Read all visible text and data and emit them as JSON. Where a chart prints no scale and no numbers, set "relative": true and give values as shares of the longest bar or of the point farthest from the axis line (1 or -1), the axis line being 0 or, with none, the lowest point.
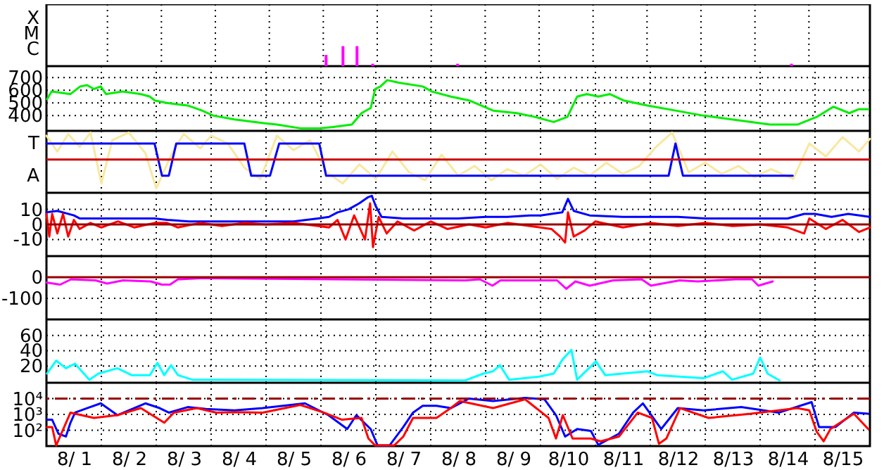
{
  "chart_data": [
    {
      "type": "bar",
      "relative": true,
      "x": [
        "--08-06T01:15",
        "--08-06T08:45",
        "--08-06T15:00",
        "--08-06T22:00",
        "--08-08T11:45",
        "--08-14T16:15"
      ],
      "values": [
        0.56,
        1,
        1,
        0.12,
        0.12,
        0.12
      ],
      "color": "#ff00ff",
      "xlim": [
        "--08-01",
        "--08-16"
      ],
      "xticks": [
        {
          "value": "--08-02",
          "label": null
        },
        {
          "value": "--08-03",
          "label": null
        },
        {
          "value": "--08-04",
          "label": null
        },
        {
          "value": "--08-05",
          "label": null
        },
        {
          "value": "--08-06",
          "label": null
        },
        {
          "value": "--08-07",
          "label": null
        },
        {
          "value": "--08-08",
          "label": null
        },
        {
          "value": "--08-09",
          "label": null
        },
        {
          "value": "--08-10",
          "label": null
        },
        {
          "value": "--08-11",
          "label": null
        },
        {
          "value": "--08-12",
          "label": null
        },
        {
          "value": "--08-13",
          "label": null
        },
        {
          "value": "--08-14",
          "label": null
        },
        {
          "value": "--08-15",
          "label": null
        }
      ],
      "annotations": [
        "X",
        "M",
        "C"
      ],
      "grid": true,
      "tick_labels": false
    },
    {
      "type": "line",
      "series": [
        {
          "color": "#00ee00",
          "x": [
            "--08-01T00:15",
            "--08-01T02:15",
            "--08-01T10:30",
            "--08-01T14:45",
            "--08-01T17:45",
            "--08-01T20:45",
            "--08-01T23:45",
            "--08-02T02:00",
            "--08-02T09:15",
            "--08-02T17:15",
            "--08-02T21:15",
            "--08-02T23:15",
            "--08-03T04:30",
            "--08-03T13:45",
            "--08-03T20:00",
            "--08-04T01:00",
            "--08-04T10:15",
            "--08-04T23:30",
            "--08-05T04:45",
            "--08-05T15:00",
            "--08-05T23:15",
            "--08-06T05:15",
            "--08-06T13:30",
            "--08-06T17:45",
            "--08-06T21:45",
            "--08-06T23:45",
            "--08-07T02:00",
            "--08-07T05:00",
            "--08-07T10:00",
            "--08-07T20:30",
            "--08-08T00:30",
            "--08-08T08:45",
            "--08-08T16:45",
            "--08-09T03:15",
            "--08-09T13:30",
            "--08-09T21:30",
            "--08-10T05:45",
            "--08-10T11:45",
            "--08-10T16:00",
            "--08-10T20:15",
            "--08-11T01:15",
            "--08-11T06:15",
            "--08-11T12:15",
            "--08-11T22:45",
            "--08-12T11:00",
            "--08-12T23:15",
            "--08-13T15:45",
            "--08-14T04:15",
            "--08-14T16:30",
            "--08-15T00:45",
            "--08-15T08:00",
            "--08-15T15:00",
            "--08-15T19:00",
            "--08-15T23:15"
          ],
          "values": [
            530,
            590,
            570,
            630,
            640,
            610,
            630,
            570,
            590,
            570,
            550,
            520,
            500,
            480,
            440,
            400,
            370,
            340,
            330,
            300,
            300,
            310,
            330,
            420,
            460,
            610,
            630,
            680,
            660,
            630,
            590,
            550,
            520,
            440,
            420,
            390,
            350,
            390,
            550,
            570,
            550,
            570,
            520,
            480,
            440,
            400,
            360,
            330,
            330,
            390,
            470,
            420,
            450,
            450
          ]
        }
      ],
      "xlim": [
        "--08-01",
        "--08-16"
      ],
      "xticks": [
        {
          "value": "--08-02",
          "label": null
        },
        {
          "value": "--08-03",
          "label": null
        },
        {
          "value": "--08-04",
          "label": null
        },
        {
          "value": "--08-05",
          "label": null
        },
        {
          "value": "--08-06",
          "label": null
        },
        {
          "value": "--08-07",
          "label": null
        },
        {
          "value": "--08-08",
          "label": null
        },
        {
          "value": "--08-09",
          "label": null
        },
        {
          "value": "--08-10",
          "label": null
        },
        {
          "value": "--08-11",
          "label": null
        },
        {
          "value": "--08-12",
          "label": null
        },
        {
          "value": "--08-13",
          "label": null
        },
        {
          "value": "--08-14",
          "label": null
        },
        {
          "value": "--08-15",
          "label": null
        }
      ],
      "ylim": [
        280,
        790
      ],
      "yticks": [
        400,
        500,
        600,
        700
      ],
      "grid": true,
      "tick_labels": "y"
    },
    {
      "type": "line",
      "relative": true,
      "series": [
        {
          "color": "#f8e8a0",
          "x": [
            "--08-01T00:00",
            "--08-01T04:45",
            "--08-01T09:30",
            "--08-01T14:30",
            "--08-01T19:15",
            "--08-02T00:00",
            "--08-02T04:45",
            "--08-02T12:00",
            "--08-02T19:15",
            "--08-03T00:00",
            "--08-03T07:15",
            "--08-03T12:00",
            "--08-03T19:15",
            "--08-04T00:00",
            "--08-04T07:15",
            "--08-04T14:30",
            "--08-04T21:30",
            "--08-05T04:45",
            "--08-05T12:00",
            "--08-05T19:15",
            "--08-06T02:30",
            "--08-06T09:30",
            "--08-06T16:45",
            "--08-07T00:00",
            "--08-07T07:15",
            "--08-07T14:30",
            "--08-07T21:30",
            "--08-08T04:45",
            "--08-08T12:00",
            "--08-08T19:15",
            "--08-09T02:30",
            "--08-09T09:30",
            "--08-09T16:45",
            "--08-10T00:00",
            "--08-10T07:15",
            "--08-10T14:30",
            "--08-10T21:30",
            "--08-11T04:45",
            "--08-11T12:00",
            "--08-11T19:15",
            "--08-12T02:30",
            "--08-12T09:30",
            "--08-12T16:45",
            "--08-13T00:00",
            "--08-13T07:15",
            "--08-13T14:30",
            "--08-13T21:30",
            "--08-14T04:45",
            "--08-14T14:30",
            "--08-14T21:30",
            "--08-15T04:45",
            "--08-15T12:00",
            "--08-15T19:15",
            "--08-16T00:00"
          ],
          "values": [
            0.83,
            0.28,
            0.89,
            0.44,
            0.94,
            -0.83,
            0.67,
            0.94,
            0.22,
            -1,
            0.28,
            0.89,
            0.39,
            0.83,
            0.56,
            -0.28,
            -0.67,
            0.83,
            0.33,
            0.67,
            -0.44,
            -0.83,
            -0.17,
            -0.67,
            0.28,
            -0.44,
            -0.72,
            0.17,
            -0.56,
            -0.22,
            -0.72,
            -0.33,
            -0.56,
            -0.17,
            -0.67,
            -0.28,
            -0.56,
            -0.11,
            -0.5,
            -0.22,
            0.44,
            0.94,
            -0.44,
            -0.11,
            -0.5,
            -0.22,
            -0.61,
            -0.33,
            -0.67,
            0.56,
            0.11,
            0.78,
            0.28,
            0.72
          ]
        },
        {
          "color": "#0000ff",
          "x": [
            "--08-01T00:00",
            "--08-02T23:15",
            "--08-03T02:30",
            "--08-03T05:30",
            "--08-03T08:45",
            "--08-04T14:30",
            "--08-04T17:30",
            "--08-05T01:45",
            "--08-05T05:45",
            "--08-05T23:15",
            "--08-06T02:15",
            "--08-12T08:00",
            "--08-12T11:00",
            "--08-12T14:15",
            "--08-14T14:15"
          ],
          "values": [
            0.56,
            0.56,
            -0.56,
            -0.56,
            0.56,
            0.56,
            -0.56,
            -0.56,
            0.56,
            0.56,
            -0.56,
            -0.56,
            0.56,
            -0.56,
            -0.56
          ]
        }
      ],
      "xlim": [
        "--08-01",
        "--08-16"
      ],
      "xticks": [
        {
          "value": "--08-02",
          "label": null
        },
        {
          "value": "--08-03",
          "label": null
        },
        {
          "value": "--08-04",
          "label": null
        },
        {
          "value": "--08-05",
          "label": null
        },
        {
          "value": "--08-06",
          "label": null
        },
        {
          "value": "--08-07",
          "label": null
        },
        {
          "value": "--08-08",
          "label": null
        },
        {
          "value": "--08-09",
          "label": null
        },
        {
          "value": "--08-10",
          "label": null
        },
        {
          "value": "--08-11",
          "label": null
        },
        {
          "value": "--08-12",
          "label": null
        },
        {
          "value": "--08-13",
          "label": null
        },
        {
          "value": "--08-14",
          "label": null
        },
        {
          "value": "--08-15",
          "label": null
        }
      ],
      "annotations": [
        "T",
        "A"
      ],
      "grid": true,
      "tick_labels": false,
      "ref_lines": [
        {
          "axis": "y",
          "value": 0,
          "color": "#cc0000"
        }
      ]
    },
    {
      "type": "line",
      "series": [
        {
          "color": "#0000ff",
          "x": [
            "--08-01T00:00",
            "--08-01T04:45",
            "--08-01T12:00",
            "--08-01T14:30",
            "--08-02T00:00",
            "--08-02T12:00",
            "--08-02T23:15",
            "--08-03T04:45",
            "--08-03T14:30",
            "--08-04T00:00",
            "--08-04T12:00",
            "--08-05T00:00",
            "--08-05T12:00",
            "--08-05T22:45",
            "--08-06T03:30",
            "--08-06T07:15",
            "--08-06T12:00",
            "--08-06T16:45",
            "--08-06T20:30",
            "--08-06T22:15",
            "--08-07T00:00",
            "--08-07T02:30",
            "--08-07T12:00",
            "--08-08T00:00",
            "--08-08T12:00",
            "--08-09T00:00",
            "--08-09T09:30",
            "--08-09T19:15",
            "--08-10T00:00",
            "--08-10T09:30",
            "--08-10T12:00",
            "--08-10T14:30",
            "--08-10T21:30",
            "--08-11T12:00",
            "--08-12T00:00",
            "--08-12T12:00",
            "--08-13T00:00",
            "--08-13T12:00",
            "--08-14T00:00",
            "--08-14T12:00",
            "--08-14T19:15",
            "--08-15T00:00",
            "--08-15T07:15",
            "--08-15T14:30",
            "--08-16T00:00"
          ],
          "values": [
            8,
            9,
            6,
            4,
            4,
            4,
            4,
            3,
            2,
            2,
            2,
            2,
            2,
            4,
            5,
            8,
            10,
            14,
            18,
            19,
            12,
            5,
            4,
            4,
            4,
            5,
            5,
            6,
            6,
            8,
            17,
            9,
            6,
            5,
            5,
            5,
            4,
            4,
            4,
            4,
            7,
            7,
            5,
            7,
            5
          ]
        },
        {
          "color": "#ff0000",
          "x": [
            "--08-01T00:00",
            "--08-01T01:15",
            "--08-01T02:30",
            "--08-01T04:45",
            "--08-01T07:15",
            "--08-01T09:30",
            "--08-01T12:00",
            "--08-01T14:30",
            "--08-01T19:15",
            "--08-02T00:00",
            "--08-02T07:15",
            "--08-02T14:30",
            "--08-02T23:15",
            "--08-03T04:45",
            "--08-03T09:30",
            "--08-03T19:15",
            "--08-04T04:45",
            "--08-04T14:30",
            "--08-05T00:00",
            "--08-05T12:00",
            "--08-05T22:45",
            "--08-06T03:30",
            "--08-06T07:15",
            "--08-06T10:45",
            "--08-06T14:30",
            "--08-06T19:15",
            "--08-06T21:30",
            "--08-06T22:45",
            "--08-07T01:15",
            "--08-07T04:45",
            "--08-07T09:30",
            "--08-07T16:45",
            "--08-08T00:00",
            "--08-08T07:15",
            "--08-08T16:45",
            "--08-09T00:00",
            "--08-09T09:30",
            "--08-09T19:15",
            "--08-10T04:45",
            "--08-10T08:30",
            "--08-10T10:45",
            "--08-10T12:00",
            "--08-10T14:30",
            "--08-10T19:15",
            "--08-11T00:00",
            "--08-11T12:00",
            "--08-12T00:00",
            "--08-12T12:00",
            "--08-13T00:00",
            "--08-13T12:00",
            "--08-14T00:00",
            "--08-14T12:00",
            "--08-14T19:15",
            "--08-14T21:30",
            "--08-15T04:45",
            "--08-15T12:00",
            "--08-15T19:15",
            "--08-16T00:00"
          ],
          "values": [
            7,
            -8,
            7,
            -6,
            7,
            -8,
            3,
            -3,
            1,
            -2,
            2,
            -2,
            1,
            1,
            -2,
            1,
            -1,
            1,
            0,
            1,
            -1,
            -2,
            3,
            -10,
            6,
            -10,
            14,
            -15,
            5,
            -6,
            2,
            -4,
            2,
            -3,
            0,
            -2,
            1,
            -1,
            -3,
            -8,
            -12,
            8,
            -8,
            -4,
            2,
            -2,
            1,
            -1,
            1,
            -1,
            0,
            -2,
            -6,
            4,
            -3,
            3,
            -5,
            -2
          ]
        }
      ],
      "xlim": [
        "--08-01",
        "--08-16"
      ],
      "xticks": [
        {
          "value": "--08-02",
          "label": null
        },
        {
          "value": "--08-03",
          "label": null
        },
        {
          "value": "--08-04",
          "label": null
        },
        {
          "value": "--08-05",
          "label": null
        },
        {
          "value": "--08-06",
          "label": null
        },
        {
          "value": "--08-07",
          "label": null
        },
        {
          "value": "--08-08",
          "label": null
        },
        {
          "value": "--08-09",
          "label": null
        },
        {
          "value": "--08-10",
          "label": null
        },
        {
          "value": "--08-11",
          "label": null
        },
        {
          "value": "--08-12",
          "label": null
        },
        {
          "value": "--08-13",
          "label": null
        },
        {
          "value": "--08-14",
          "label": null
        },
        {
          "value": "--08-15",
          "label": null
        }
      ],
      "ylim": [
        -21,
        21
      ],
      "yticks": [
        -10,
        0,
        10
      ],
      "grid": true,
      "tick_labels": "y",
      "ref_lines": [
        {
          "axis": "y",
          "value": 0,
          "color": "#990000"
        }
      ]
    },
    {
      "type": "line",
      "series": [
        {
          "color": "#ff00ff",
          "x": [
            "--08-01T00:00",
            "--08-01T06:00",
            "--08-01T10:45",
            "--08-01T21:30",
            "--08-02T02:30",
            "--08-02T09:30",
            "--08-02T21:30",
            "--08-03T02:30",
            "--08-03T06:00",
            "--08-03T09:30",
            "--08-03T19:15",
            "--08-03T22:00",
            "--08-08T15:00",
            "--08-08T21:30",
            "--08-09T03:00",
            "--08-09T06:30",
            "--08-10T07:15",
            "--08-10T11:15",
            "--08-10T15:15",
            "--08-10T21:30",
            "--08-11T07:45",
            "--08-11T20:15",
            "--08-12T00:15",
            "--08-12T12:45",
            "--08-12T20:45",
            "--08-13T13:15",
            "--08-13T20:30",
            "--08-13T23:15",
            "--08-14T05:30"
          ],
          "values": [
            -25,
            -35,
            -10,
            -15,
            -30,
            -15,
            -20,
            -35,
            -35,
            -10,
            -5,
            -5,
            -15,
            -10,
            -40,
            -15,
            -15,
            -55,
            -20,
            -40,
            -15,
            -10,
            -40,
            -15,
            -20,
            -10,
            -10,
            -40,
            -20
          ]
        }
      ],
      "xlim": [
        "--08-01",
        "--08-16"
      ],
      "xticks": [
        {
          "value": "--08-02",
          "label": null
        },
        {
          "value": "--08-03",
          "label": null
        },
        {
          "value": "--08-04",
          "label": null
        },
        {
          "value": "--08-05",
          "label": null
        },
        {
          "value": "--08-06",
          "label": null
        },
        {
          "value": "--08-07",
          "label": null
        },
        {
          "value": "--08-08",
          "label": null
        },
        {
          "value": "--08-09",
          "label": null
        },
        {
          "value": "--08-10",
          "label": null
        },
        {
          "value": "--08-11",
          "label": null
        },
        {
          "value": "--08-12",
          "label": null
        },
        {
          "value": "--08-13",
          "label": null
        },
        {
          "value": "--08-14",
          "label": null
        },
        {
          "value": "--08-15",
          "label": null
        }
      ],
      "ylim": [
        -200,
        100
      ],
      "yticks": [
        -100,
        0
      ],
      "grid": true,
      "tick_labels": "y",
      "ref_lines": [
        {
          "axis": "y",
          "value": 0,
          "color": "#990000"
        }
      ]
    },
    {
      "type": "line",
      "series": [
        {
          "color": "#00ffff",
          "x": [
            "--08-01T00:15",
            "--08-01T04:15",
            "--08-01T08:30",
            "--08-01T12:30",
            "--08-01T18:45",
            "--08-01T22:45",
            "--08-02T07:00",
            "--08-02T13:15",
            "--08-02T21:15",
            "--08-03T00:30",
            "--08-03T03:30",
            "--08-03T06:30",
            "--08-03T09:30",
            "--08-03T15:45",
            "--08-03T22:00",
            "--08-08T15:00",
            "--08-08T23:00",
            "--08-09T03:15",
            "--08-09T06:15",
            "--08-09T10:15",
            "--08-09T23:30",
            "--08-10T05:45",
            "--08-10T09:45",
            "--08-10T13:30",
            "--08-10T16:00",
            "--08-11T00:15",
            "--08-11T04:15",
            "--08-11T22:45",
            "--08-12T03:00",
            "--08-12T23:15",
            "--08-13T07:45",
            "--08-13T11:45",
            "--08-13T21:00",
            "--08-14T00:00",
            "--08-14T03:15",
            "--08-14T08:30"
          ],
          "values": [
            10,
            27,
            17,
            23,
            2,
            10,
            17,
            8,
            8,
            24,
            8,
            21,
            8,
            2,
            2,
            1,
            10,
            13,
            21,
            2,
            6,
            10,
            29,
            41,
            2,
            26,
            8,
            13,
            8,
            4,
            13,
            2,
            10,
            31,
            10,
            1
          ]
        }
      ],
      "xlim": [
        "--08-01",
        "--08-16"
      ],
      "xticks": [
        {
          "value": "--08-02",
          "label": null
        },
        {
          "value": "--08-03",
          "label": null
        },
        {
          "value": "--08-04",
          "label": null
        },
        {
          "value": "--08-05",
          "label": null
        },
        {
          "value": "--08-06",
          "label": null
        },
        {
          "value": "--08-07",
          "label": null
        },
        {
          "value": "--08-08",
          "label": null
        },
        {
          "value": "--08-09",
          "label": null
        },
        {
          "value": "--08-10",
          "label": null
        },
        {
          "value": "--08-11",
          "label": null
        },
        {
          "value": "--08-12",
          "label": null
        },
        {
          "value": "--08-13",
          "label": null
        },
        {
          "value": "--08-14",
          "label": null
        },
        {
          "value": "--08-15",
          "label": null
        }
      ],
      "ylim": [
        -2,
        81
      ],
      "yticks": [
        20,
        40,
        60
      ],
      "grid": true,
      "tick_labels": "y"
    },
    {
      "type": "line",
      "log": true,
      "series": [
        {
          "color": "#0000ff",
          "x": [
            "--08-01T00:15",
            "--08-01T02:30",
            "--08-01T05:15",
            "--08-01T08:30",
            "--08-01T10:30",
            "--08-01T12:30",
            "--08-01T17:45",
            "--08-01T23:45",
            "--08-02T07:00",
            "--08-02T19:15",
            "--08-03T01:30",
            "--08-03T05:30",
            "--08-03T13:45",
            "--08-03T21:45",
            "--08-04T10:15",
            "--08-04T22:30",
            "--08-05T17:00",
            "--08-06T03:15",
            "--08-06T11:30",
            "--08-06T15:30",
            "--08-06T21:45",
            "--08-07T00:45",
            "--08-07T06:00",
            "--08-07T12:00",
            "--08-07T16:15",
            "--08-07T20:30",
            "--08-08T02:30",
            "--08-08T08:45",
            "--08-08T16:45",
            "--08-09T03:15",
            "--08-09T17:15",
            "--08-10T01:45",
            "--08-10T06:45",
            "--08-10T10:45",
            "--08-10T16:00",
            "--08-10T22:00",
            "--08-11T01:15",
            "--08-11T10:15",
            "--08-11T16:30",
            "--08-11T20:45",
            "--08-12T04:45",
            "--08-12T12:00",
            "--08-12T23:15",
            "--08-13T15:45",
            "--08-14T08:15",
            "--08-14T22:30",
            "--08-15T01:45",
            "--08-15T09:00",
            "--08-15T17:00",
            "--08-15T23:15"
          ],
          "values": [
            460,
            460,
            60,
            40,
            300,
            1300,
            2500,
            5000,
            900,
            5000,
            2500,
            1300,
            2900,
            2200,
            1800,
            2500,
            5000,
            900,
            120,
            900,
            120,
            11,
            11,
            160,
            1300,
            3500,
            3500,
            2500,
            10000,
            7000,
            11000,
            9000,
            900,
            40,
            120,
            90,
            12,
            60,
            1300,
            5000,
            120,
            2500,
            1800,
            2900,
            1300,
            6000,
            160,
            160,
            1300,
            1100
          ]
        },
        {
          "color": "#ff0000",
          "x": [
            "--08-01T00:15",
            "--08-01T02:30",
            "--08-01T04:15",
            "--08-01T10:30",
            "--08-01T20:45",
            "--08-02T07:00",
            "--08-02T17:15",
            "--08-03T03:30",
            "--08-03T07:45",
            "--08-03T17:45",
            "--08-04T02:15",
            "--08-04T10:15",
            "--08-04T22:30",
            "--08-05T15:00",
            "--08-06T01:15",
            "--08-06T09:15",
            "--08-06T17:45",
            "--08-06T20:45",
            "--08-06T23:45",
            "--08-07T08:00",
            "--08-07T12:00",
            "--08-07T16:15",
            "--08-07T22:15",
            "--08-08T02:30",
            "--08-08T08:45",
            "--08-08T12:45",
            "--08-09T03:15",
            "--08-09T17:15",
            "--08-10T03:30",
            "--08-10T06:45",
            "--08-10T09:45",
            "--08-10T14:00",
            "--08-10T22:00",
            "--08-11T02:15",
            "--08-11T10:15",
            "--08-11T18:30",
            "--08-12T00:45",
            "--08-12T03:45",
            "--08-12T07:00",
            "--08-12T13:00",
            "--08-13T01:30",
            "--08-13T20:00",
            "--08-14T16:15",
            "--08-14T21:30",
            "--08-15T00:45",
            "--08-15T03:45",
            "--08-15T06:45",
            "--08-15T17:00",
            "--08-15T23:15"
          ],
          "values": [
            160,
            160,
            11,
            1300,
            600,
            900,
            2500,
            300,
            1300,
            2500,
            1300,
            1400,
            1300,
            4000,
            1300,
            460,
            600,
            30,
            11,
            11,
            40,
            600,
            600,
            600,
            2500,
            7000,
            2500,
            9000,
            600,
            30,
            900,
            30,
            30,
            20,
            40,
            1300,
            600,
            14,
            30,
            2500,
            600,
            1100,
            2500,
            1800,
            80,
            20,
            120,
            1100,
            120
          ]
        }
      ],
      "xlim": [
        "--08-01",
        "--08-16"
      ],
      "xticks": [
        {
          "value": "--08-01T12:00",
          "label": "8/ 1"
        },
        {
          "value": "--08-02",
          "label": null
        },
        {
          "value": "--08-02T12:00",
          "label": "8/ 2"
        },
        {
          "value": "--08-03",
          "label": null
        },
        {
          "value": "--08-03T12:00",
          "label": "8/ 3"
        },
        {
          "value": "--08-04",
          "label": null
        },
        {
          "value": "--08-04T12:00",
          "label": "8/ 4"
        },
        {
          "value": "--08-05",
          "label": null
        },
        {
          "value": "--08-05T12:00",
          "label": "8/ 5"
        },
        {
          "value": "--08-06",
          "label": null
        },
        {
          "value": "--08-06T12:00",
          "label": "8/ 6"
        },
        {
          "value": "--08-07",
          "label": null
        },
        {
          "value": "--08-07T12:00",
          "label": "8/ 7"
        },
        {
          "value": "--08-08",
          "label": null
        },
        {
          "value": "--08-08T12:00",
          "label": "8/ 8"
        },
        {
          "value": "--08-09",
          "label": null
        },
        {
          "value": "--08-09T12:00",
          "label": "8/ 9"
        },
        {
          "value": "--08-10",
          "label": null
        },
        {
          "value": "--08-10T12:00",
          "label": "8/10"
        },
        {
          "value": "--08-11",
          "label": null
        },
        {
          "value": "--08-11T12:00",
          "label": "8/11"
        },
        {
          "value": "--08-12",
          "label": null
        },
        {
          "value": "--08-12T12:00",
          "label": "8/12"
        },
        {
          "value": "--08-13",
          "label": null
        },
        {
          "value": "--08-13T12:00",
          "label": "8/13"
        },
        {
          "value": "--08-14",
          "label": null
        },
        {
          "value": "--08-14T12:00",
          "label": "8/14"
        },
        {
          "value": "--08-15",
          "label": null
        },
        {
          "value": "--08-15T12:00",
          "label": "8/15"
        }
      ],
      "ylim": [
        10,
        100000
      ],
      "yticks": [
        {
          "value": 100,
          "label": "10²"
        },
        {
          "value": 1000,
          "label": "10³"
        },
        {
          "value": 10000,
          "label": "10⁴"
        }
      ],
      "grid": true,
      "ref_lines": [
        {
          "axis": "y",
          "value": 10000,
          "color": "#990000",
          "line_style": "dashed"
        }
      ]
    }
  ]
}
